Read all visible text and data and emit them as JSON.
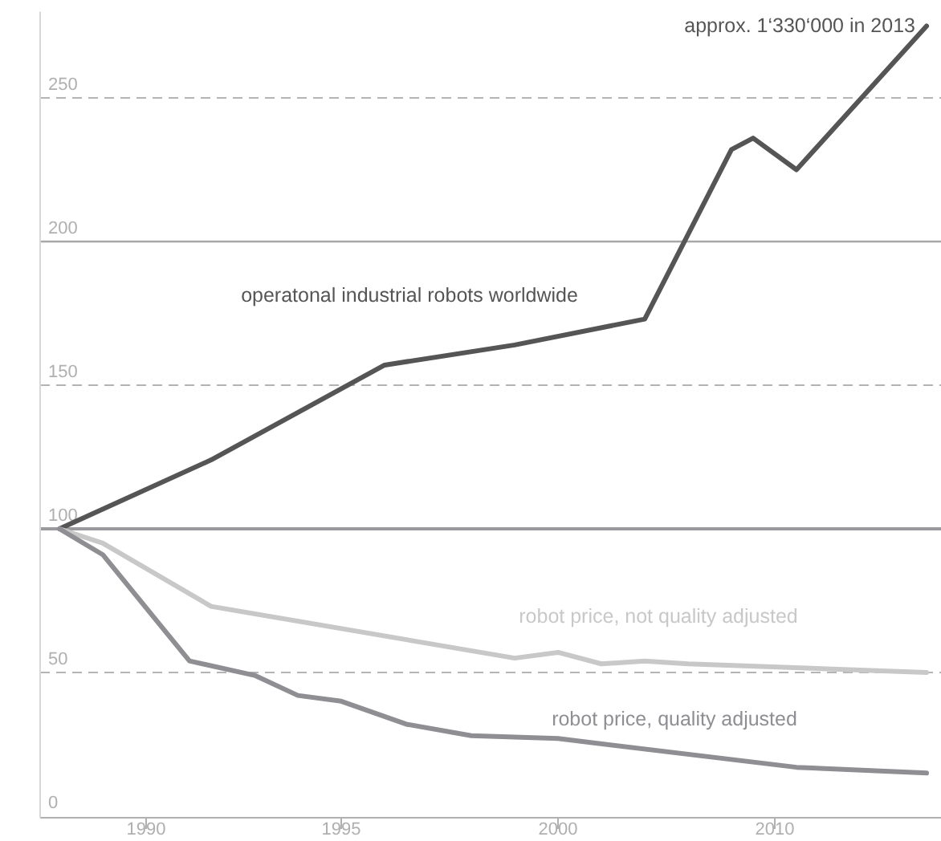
{
  "chart_data": {
    "type": "line",
    "categories": [
      null,
      null,
      null,
      null,
      "1990",
      null,
      null,
      null,
      null,
      null,
      null,
      null,
      null,
      "1995",
      null,
      null,
      null,
      null,
      null,
      null,
      null,
      null,
      null,
      "2000",
      null,
      null,
      null,
      null,
      null,
      null,
      null,
      null,
      null,
      "2010",
      null,
      null,
      null,
      null,
      null,
      null,
      null
    ],
    "series": [
      {
        "name": "operatonal industrial robots worldwide",
        "color": "#555555",
        "values": [
          100,
          null,
          null,
          null,
          null,
          null,
          null,
          124,
          null,
          null,
          null,
          null,
          null,
          null,
          null,
          157,
          null,
          null,
          null,
          null,
          null,
          164,
          null,
          null,
          null,
          null,
          null,
          173,
          null,
          null,
          null,
          232,
          236,
          null,
          225,
          null,
          null,
          null,
          null,
          null,
          275
        ]
      },
      {
        "name": "robot price, not quality adjusted",
        "color": "#c8c8c8",
        "values": [
          100,
          null,
          95,
          null,
          null,
          null,
          null,
          73,
          null,
          null,
          null,
          null,
          null,
          null,
          null,
          null,
          null,
          null,
          null,
          null,
          null,
          55,
          null,
          57,
          null,
          53,
          null,
          54,
          null,
          53,
          null,
          null,
          null,
          null,
          null,
          null,
          null,
          null,
          null,
          null,
          50
        ]
      },
      {
        "name": "robot price, quality adjusted",
        "color": "#8e8e93",
        "values": [
          100,
          null,
          91,
          null,
          null,
          null,
          54,
          null,
          null,
          49,
          null,
          42,
          null,
          40,
          null,
          null,
          32,
          null,
          null,
          28,
          null,
          null,
          null,
          27,
          null,
          null,
          null,
          null,
          null,
          null,
          null,
          null,
          null,
          null,
          17,
          null,
          null,
          null,
          null,
          null,
          15
        ]
      }
    ],
    "ylim": [
      0,
      280
    ],
    "yticks": [
      0,
      50,
      100,
      150,
      200,
      250
    ],
    "grid": "y",
    "ref_lines": [
      {
        "axis": "y",
        "value": 100,
        "color": "#9a9a9e"
      },
      {
        "axis": "y",
        "value": 200,
        "color": "#a8a8a8"
      }
    ],
    "annotations": [
      "approx. 1‘330‘000 in 2013"
    ]
  }
}
